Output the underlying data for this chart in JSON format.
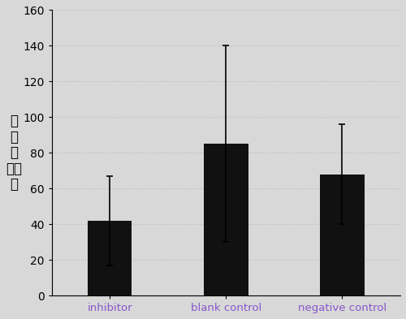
{
  "categories": [
    "inhibitor",
    "blank control",
    "negative control"
  ],
  "values": [
    42,
    85,
    68
  ],
  "errors": [
    25,
    55,
    28
  ],
  "bar_color": "#111111",
  "bar_width": 0.38,
  "ylim": [
    0,
    160
  ],
  "yticks": [
    0,
    20,
    40,
    60,
    80,
    100,
    120,
    140,
    160
  ],
  "ylabel_chars": [
    "回",
    "收",
    "幹",
    "均値",
    "量"
  ],
  "grid_color": "#bbbbbb",
  "background_color": "#d8d8d8",
  "x_label_colors": [
    "#8855cc",
    "#8855cc",
    "#8855cc"
  ],
  "figsize": [
    5.0,
    3.93
  ],
  "dpi": 100,
  "bar_positions": [
    0.5,
    1.5,
    2.5
  ],
  "xlim": [
    0,
    3.0
  ]
}
